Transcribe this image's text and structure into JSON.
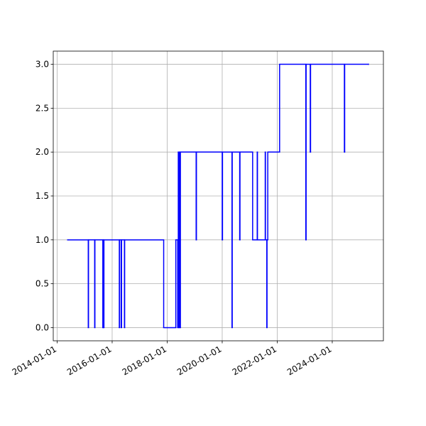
{
  "chart_data": {
    "type": "line",
    "drawstyle": "steps-post",
    "grid": true,
    "xlim": [
      "2013-11-10",
      "2025-11-10"
    ],
    "ylim": [
      -0.15,
      3.15
    ],
    "xticks": [
      "2014-01-01",
      "2016-01-01",
      "2018-01-01",
      "2020-01-01",
      "2022-01-01",
      "2024-01-01"
    ],
    "yticks": [
      {
        "value": 0,
        "label": "0.0"
      },
      {
        "value": 0.5,
        "label": "0.5"
      },
      {
        "value": 1,
        "label": "1.0"
      },
      {
        "value": 1.5,
        "label": "1.5"
      },
      {
        "value": 2,
        "label": "2.0"
      },
      {
        "value": 2.5,
        "label": "2.5"
      },
      {
        "value": 3,
        "label": "3.0"
      }
    ],
    "series": [
      {
        "color": "#0000ff",
        "x": [
          "2014-05-20",
          "2015-02-18",
          "2015-02-21",
          "2015-05-14",
          "2015-05-17",
          "2015-08-30",
          "2015-09-05",
          "2015-09-10",
          "2015-09-14",
          "2016-04-05",
          "2016-04-09",
          "2016-05-01",
          "2016-05-05",
          "2016-06-12",
          "2016-06-15",
          "2017-11-15",
          "2018-04-25",
          "2018-05-20",
          "2018-05-28",
          "2018-06-05",
          "2018-06-12",
          "2018-06-20",
          "2018-06-25",
          "2019-01-20",
          "2019-01-24",
          "2020-01-01",
          "2020-01-05",
          "2020-05-10",
          "2020-05-13",
          "2020-08-20",
          "2020-08-24",
          "2021-02-08",
          "2021-04-10",
          "2021-04-13",
          "2021-07-25",
          "2021-07-28",
          "2021-08-15",
          "2021-08-18",
          "2021-08-28",
          "2022-02-01",
          "2023-01-15",
          "2023-01-19",
          "2023-03-15",
          "2023-03-19",
          "2024-06-10",
          "2024-06-14",
          "2025-04-25"
        ],
        "values": [
          1,
          0,
          1,
          0,
          1,
          0,
          1,
          0,
          1,
          0,
          1,
          0,
          1,
          0,
          1,
          0,
          1,
          0,
          2,
          0,
          2,
          0,
          2,
          1,
          2,
          1,
          2,
          0,
          2,
          1,
          2,
          1,
          2,
          1,
          2,
          1,
          0,
          1,
          2,
          3,
          1,
          3,
          2,
          3,
          2,
          3,
          3
        ]
      }
    ]
  }
}
